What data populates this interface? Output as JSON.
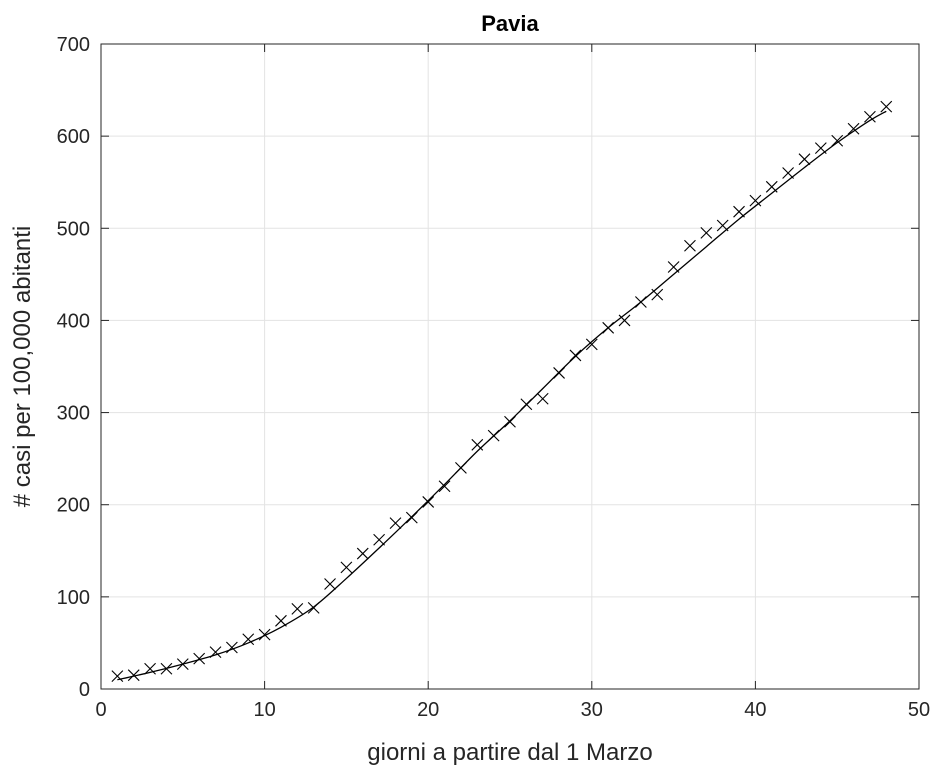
{
  "chart_data": {
    "type": "scatter",
    "title": "Pavia",
    "xlabel": "giorni a partire dal 1 Marzo",
    "ylabel": "# casi per 100,000 abitanti",
    "xlim": [
      0,
      50
    ],
    "ylim": [
      0,
      700
    ],
    "xticks": [
      0,
      10,
      20,
      30,
      40,
      50
    ],
    "yticks": [
      0,
      100,
      200,
      300,
      400,
      500,
      600,
      700
    ],
    "grid": true,
    "colors": {
      "marker": "#000000",
      "fit": "#000000",
      "grid": "#e3e3e3",
      "axis": "#262626"
    },
    "series": [
      {
        "marker": "x",
        "x": [
          1,
          2,
          3,
          4,
          5,
          6,
          7,
          8,
          9,
          10,
          11,
          12,
          13,
          14,
          15,
          16,
          17,
          18,
          19,
          20,
          21,
          22,
          23,
          24,
          25,
          26,
          27,
          28,
          29,
          30,
          31,
          32,
          33,
          34,
          35,
          36,
          37,
          38,
          39,
          40,
          41,
          42,
          43,
          44,
          45,
          46,
          47,
          48
        ],
        "values": [
          14,
          15,
          22,
          22,
          27,
          33,
          40,
          45,
          54,
          59,
          74,
          87,
          88,
          114,
          132,
          147,
          162,
          180,
          186,
          203,
          220,
          240,
          265,
          275,
          290,
          309,
          315,
          343,
          362,
          374,
          392,
          400,
          420,
          428,
          458,
          481,
          495,
          503,
          518,
          530,
          545,
          560,
          575,
          587,
          595,
          608,
          621,
          632
        ]
      },
      {
        "style": "line",
        "x": [
          1,
          3,
          5,
          7,
          9,
          11,
          13,
          15,
          17,
          19,
          21,
          23,
          25,
          27,
          29,
          31,
          33,
          35,
          37,
          39,
          41,
          43,
          45,
          47,
          48
        ],
        "values": [
          10,
          18,
          27,
          37,
          50,
          67,
          89,
          120,
          153,
          187,
          222,
          258,
          291,
          326,
          361,
          392,
          420,
          450,
          480,
          510,
          538,
          566,
          593,
          617,
          627
        ]
      }
    ]
  }
}
